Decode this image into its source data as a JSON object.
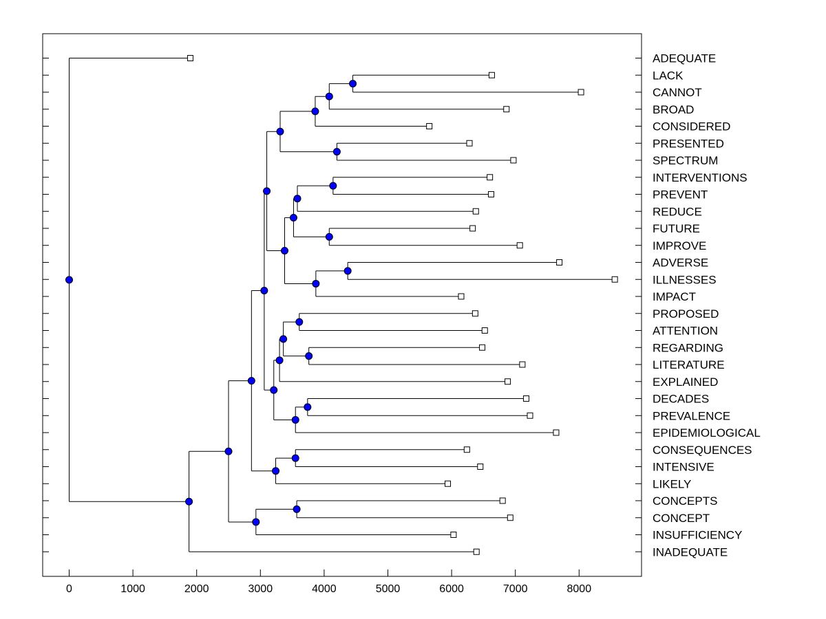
{
  "chart_data": {
    "type": "dendrogram",
    "title": "",
    "xlabel": "",
    "ylabel": "",
    "xlim": [
      -400,
      9000
    ],
    "x_ticks": [
      0,
      1000,
      2000,
      3000,
      4000,
      5000,
      6000,
      7000,
      8000
    ],
    "grid": false,
    "leaves": [
      {
        "label": "ADEQUATE",
        "x": 1900
      },
      {
        "label": "LACK",
        "x": 6630
      },
      {
        "label": "CANNOT",
        "x": 8030
      },
      {
        "label": "BROAD",
        "x": 6860
      },
      {
        "label": "CONSIDERED",
        "x": 5650
      },
      {
        "label": "PRESENTED",
        "x": 6280
      },
      {
        "label": "SPECTRUM",
        "x": 6970
      },
      {
        "label": "INTERVENTIONS",
        "x": 6600
      },
      {
        "label": "PREVENT",
        "x": 6620
      },
      {
        "label": "REDUCE",
        "x": 6380
      },
      {
        "label": "FUTURE",
        "x": 6330
      },
      {
        "label": "IMPROVE",
        "x": 7070
      },
      {
        "label": "ADVERSE",
        "x": 7690
      },
      {
        "label": "ILLNESSES",
        "x": 8560
      },
      {
        "label": "IMPACT",
        "x": 6150
      },
      {
        "label": "PROPOSED",
        "x": 6370
      },
      {
        "label": "ATTENTION",
        "x": 6520
      },
      {
        "label": "REGARDING",
        "x": 6480
      },
      {
        "label": "LITERATURE",
        "x": 7110
      },
      {
        "label": "EXPLAINED",
        "x": 6880
      },
      {
        "label": "DECADES",
        "x": 7170
      },
      {
        "label": "PREVALENCE",
        "x": 7230
      },
      {
        "label": "EPIDEMIOLOGICAL",
        "x": 7640
      },
      {
        "label": "CONSEQUENCES",
        "x": 6240
      },
      {
        "label": "INTENSIVE",
        "x": 6450
      },
      {
        "label": "LIKELY",
        "x": 5940
      },
      {
        "label": "CONCEPTS",
        "x": 6800
      },
      {
        "label": "CONCEPT",
        "x": 6920
      },
      {
        "label": "INSUFFICIENCY",
        "x": 6030
      },
      {
        "label": "INADEQUATE",
        "x": 6390
      }
    ],
    "merges": [
      {
        "id": "n1",
        "x": 4450,
        "children": [
          "LACK",
          "CANNOT"
        ]
      },
      {
        "id": "n2",
        "x": 4080,
        "children": [
          "n1",
          "BROAD"
        ]
      },
      {
        "id": "n3",
        "x": 3860,
        "children": [
          "n2",
          "CONSIDERED"
        ]
      },
      {
        "id": "n4",
        "x": 4200,
        "children": [
          "PRESENTED",
          "SPECTRUM"
        ]
      },
      {
        "id": "n5",
        "x": 3310,
        "children": [
          "n3",
          "n4"
        ]
      },
      {
        "id": "n6",
        "x": 4140,
        "children": [
          "INTERVENTIONS",
          "PREVENT"
        ]
      },
      {
        "id": "n7",
        "x": 3580,
        "children": [
          "n6",
          "REDUCE"
        ]
      },
      {
        "id": "n8",
        "x": 4080,
        "children": [
          "FUTURE",
          "IMPROVE"
        ]
      },
      {
        "id": "n9",
        "x": 3520,
        "children": [
          "n7",
          "n8"
        ]
      },
      {
        "id": "n10",
        "x": 4370,
        "children": [
          "ADVERSE",
          "ILLNESSES"
        ]
      },
      {
        "id": "n11",
        "x": 3870,
        "children": [
          "n10",
          "IMPACT"
        ]
      },
      {
        "id": "n12",
        "x": 3380,
        "children": [
          "n9",
          "n11"
        ]
      },
      {
        "id": "n13",
        "x": 3100,
        "children": [
          "n5",
          "n12"
        ]
      },
      {
        "id": "n14",
        "x": 3610,
        "children": [
          "PROPOSED",
          "ATTENTION"
        ]
      },
      {
        "id": "n15",
        "x": 3760,
        "children": [
          "REGARDING",
          "LITERATURE"
        ]
      },
      {
        "id": "n16",
        "x": 3360,
        "children": [
          "n14",
          "n15"
        ]
      },
      {
        "id": "n17",
        "x": 3300,
        "children": [
          "n16",
          "EXPLAINED"
        ]
      },
      {
        "id": "n18",
        "x": 3740,
        "children": [
          "DECADES",
          "PREVALENCE"
        ]
      },
      {
        "id": "n19",
        "x": 3550,
        "children": [
          "n18",
          "EPIDEMIOLOGICAL"
        ]
      },
      {
        "id": "n20",
        "x": 3210,
        "children": [
          "n17",
          "n19"
        ]
      },
      {
        "id": "n21",
        "x": 3060,
        "children": [
          "n13",
          "n20"
        ]
      },
      {
        "id": "n22",
        "x": 3550,
        "children": [
          "CONSEQUENCES",
          "INTENSIVE"
        ]
      },
      {
        "id": "n23",
        "x": 3240,
        "children": [
          "n22",
          "LIKELY"
        ]
      },
      {
        "id": "n24",
        "x": 2860,
        "children": [
          "n21",
          "n23"
        ]
      },
      {
        "id": "n25",
        "x": 3570,
        "children": [
          "CONCEPTS",
          "CONCEPT"
        ]
      },
      {
        "id": "n26",
        "x": 2930,
        "children": [
          "n25",
          "INSUFFICIENCY"
        ]
      },
      {
        "id": "n27",
        "x": 2500,
        "children": [
          "n24",
          "n26"
        ]
      },
      {
        "id": "n28",
        "x": 1880,
        "children": [
          "n27",
          "INADEQUATE"
        ]
      },
      {
        "id": "root",
        "x": 0,
        "children": [
          "ADEQUATE",
          "n28"
        ]
      }
    ],
    "colors": {
      "node_fill": "#0000ff",
      "line": "#000000",
      "leaf_fill": "#ffffff"
    }
  }
}
